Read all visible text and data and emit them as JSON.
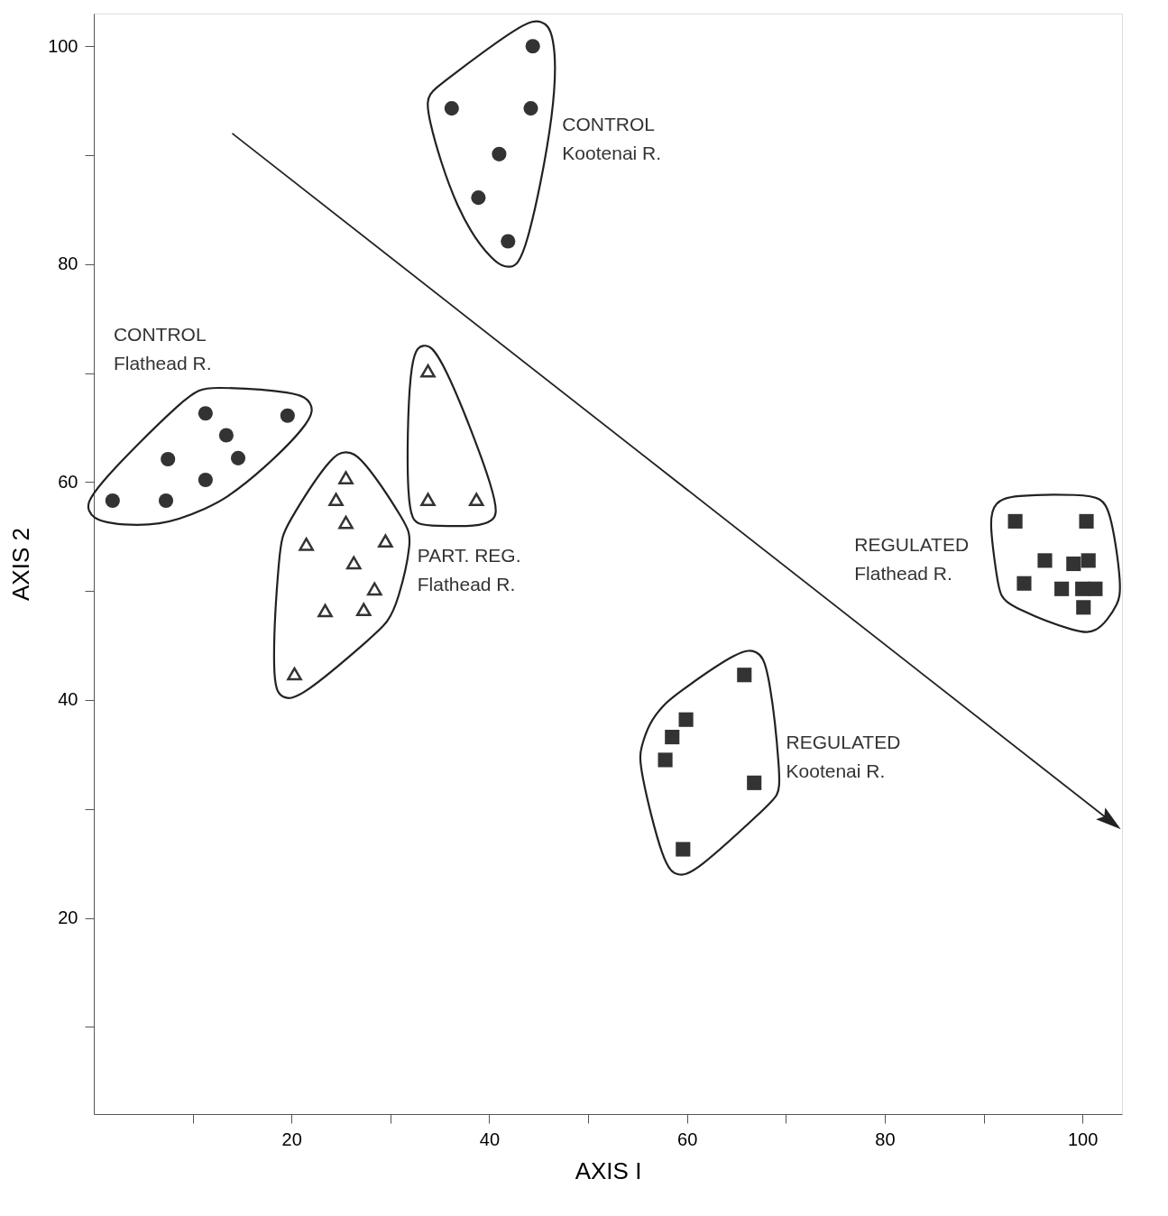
{
  "chart_data": {
    "type": "scatter",
    "xlabel": "AXIS I",
    "ylabel": "AXIS 2",
    "xlim": [
      0,
      104
    ],
    "ylim": [
      2,
      103
    ],
    "xticks": [
      {
        "value": 10,
        "label": null
      },
      20,
      {
        "value": 30,
        "label": null
      },
      40,
      {
        "value": 50,
        "label": null
      },
      60,
      {
        "value": 70,
        "label": null
      },
      80,
      {
        "value": 90,
        "label": null
      },
      100
    ],
    "yticks": [
      {
        "value": 10,
        "label": null
      },
      20,
      {
        "value": 30,
        "label": null
      },
      40,
      {
        "value": 50,
        "label": null
      },
      60,
      {
        "value": 70,
        "label": null
      },
      80,
      {
        "value": 90,
        "label": null
      },
      100
    ],
    "grid": false,
    "series": [
      {
        "name": "CONTROL\nKootenai R.",
        "marker": "circle",
        "color": "#333333",
        "x": [
          44.4,
          36.2,
          44.2,
          41.0,
          38.9,
          41.9
        ],
        "values": [
          100,
          94.3,
          94.3,
          90.1,
          86.1,
          82.1
        ]
      },
      {
        "name": "CONTROL\nFlathead R.",
        "marker": "circle",
        "color": "#333333",
        "x": [
          1.9,
          7.3,
          7.5,
          11.3,
          13.4,
          14.6,
          11.3,
          19.6
        ],
        "values": [
          58.3,
          58.3,
          62.1,
          66.3,
          64.3,
          62.2,
          60.2,
          66.1
        ]
      },
      {
        "name": "PART. REG.\nFlathead R.",
        "marker": "triangle",
        "color": "#333333",
        "x": [
          25.5,
          24.5,
          25.5,
          21.5,
          29.5,
          26.3,
          28.4,
          23.4,
          27.3,
          20.3
        ],
        "values": [
          60.4,
          58.4,
          56.3,
          54.3,
          54.6,
          52.6,
          50.2,
          48.2,
          48.3,
          42.4
        ]
      },
      {
        "marker": "triangle",
        "color": "#333333",
        "x": [
          33.8,
          33.8,
          38.7
        ],
        "values": [
          70.2,
          58.4,
          58.4
        ]
      },
      {
        "name": "REGULATED\nKootenai R.",
        "marker": "square",
        "color": "#333333",
        "x": [
          65.8,
          59.9,
          58.5,
          57.8,
          66.8,
          59.6
        ],
        "values": [
          42.3,
          38.2,
          36.6,
          34.5,
          32.4,
          26.3
        ]
      },
      {
        "name": "REGULATED\nFlathead R.",
        "marker": "square",
        "color": "#333333",
        "x": [
          93.2,
          100.4,
          96.2,
          99.1,
          100.6,
          94.1,
          97.9,
          101.3,
          100.0,
          100.1
        ],
        "values": [
          56.4,
          56.4,
          52.8,
          52.5,
          52.8,
          50.7,
          50.2,
          50.2,
          50.2,
          48.5
        ]
      },
      {
        "type": "line",
        "color": "#222222",
        "x": [
          14,
          102.8
        ],
        "values": [
          92,
          28.9
        ]
      }
    ]
  }
}
